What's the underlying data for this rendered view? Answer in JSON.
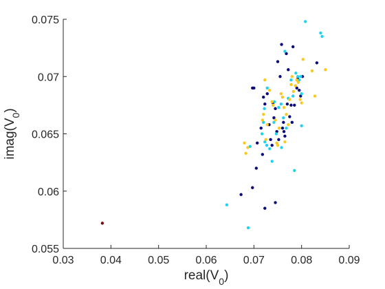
{
  "chart_data": {
    "type": "scatter",
    "title": "",
    "xlabel": {
      "main": "real(V",
      "sub": "0",
      "close": ")"
    },
    "ylabel": {
      "main": "imag(V",
      "sub": "0",
      "close": ")"
    },
    "xlim": [
      0.03,
      0.09
    ],
    "ylim": [
      0.055,
      0.075
    ],
    "xticks": [
      0.03,
      0.04,
      0.05,
      0.06,
      0.07,
      0.08,
      0.09
    ],
    "xtick_labels": [
      "0.03",
      "0.04",
      "0.05",
      "0.06",
      "0.07",
      "0.08",
      "0.09"
    ],
    "yticks": [
      0.055,
      0.06,
      0.065,
      0.07,
      0.075
    ],
    "ytick_labels": [
      "0.055",
      "0.06",
      "0.065",
      "0.07",
      "0.075"
    ],
    "grid": false,
    "series": [
      {
        "color": "#0a0a78",
        "points": [
          [
            0.0697,
            0.069
          ],
          [
            0.07,
            0.069
          ],
          [
            0.0707,
            0.0642
          ],
          [
            0.0715,
            0.0655
          ],
          [
            0.072,
            0.0682
          ],
          [
            0.0723,
            0.0676
          ],
          [
            0.0728,
            0.0685
          ],
          [
            0.0732,
            0.0658
          ],
          [
            0.0735,
            0.0645
          ],
          [
            0.0738,
            0.064
          ],
          [
            0.074,
            0.0677
          ],
          [
            0.0742,
            0.0664
          ],
          [
            0.0745,
            0.0672
          ],
          [
            0.0748,
            0.0652
          ],
          [
            0.075,
            0.0713
          ],
          [
            0.0752,
            0.0645
          ],
          [
            0.0755,
            0.07
          ],
          [
            0.0758,
            0.0728
          ],
          [
            0.076,
            0.0655
          ],
          [
            0.0762,
            0.066
          ],
          [
            0.0763,
            0.0652
          ],
          [
            0.0765,
            0.0648
          ],
          [
            0.0768,
            0.072
          ],
          [
            0.077,
            0.0676
          ],
          [
            0.0772,
            0.0706
          ],
          [
            0.0775,
            0.0665
          ],
          [
            0.0778,
            0.0675
          ],
          [
            0.078,
            0.066
          ],
          [
            0.0782,
            0.0726
          ],
          [
            0.0785,
            0.0675
          ],
          [
            0.079,
            0.069
          ],
          [
            0.0792,
            0.0698
          ],
          [
            0.0795,
            0.0688
          ],
          [
            0.0798,
            0.0683
          ],
          [
            0.0802,
            0.07
          ],
          [
            0.0832,
            0.0712
          ],
          [
            0.0705,
            0.062
          ],
          [
            0.0673,
            0.0597
          ],
          [
            0.0697,
            0.0603
          ],
          [
            0.0723,
            0.0585
          ],
          [
            0.0745,
            0.059
          ],
          [
            0.0718,
            0.0632
          ]
        ]
      },
      {
        "color": "#1ed2f0",
        "points": [
          [
            0.0643,
            0.0588
          ],
          [
            0.0688,
            0.0568
          ],
          [
            0.0692,
            0.0639
          ],
          [
            0.0717,
            0.065
          ],
          [
            0.072,
            0.066
          ],
          [
            0.0722,
            0.0672
          ],
          [
            0.0723,
            0.0643
          ],
          [
            0.0727,
            0.064
          ],
          [
            0.0728,
            0.069
          ],
          [
            0.0733,
            0.0637
          ],
          [
            0.0738,
            0.0626
          ],
          [
            0.0742,
            0.066
          ],
          [
            0.0743,
            0.0678
          ],
          [
            0.0747,
            0.065
          ],
          [
            0.0752,
            0.0673
          ],
          [
            0.0757,
            0.0676
          ],
          [
            0.0758,
            0.0638
          ],
          [
            0.0762,
            0.0664
          ],
          [
            0.0765,
            0.0722
          ],
          [
            0.0768,
            0.0655
          ],
          [
            0.0772,
            0.0681
          ],
          [
            0.0778,
            0.0697
          ],
          [
            0.0782,
            0.0683
          ],
          [
            0.0785,
            0.0618
          ],
          [
            0.0788,
            0.0703
          ],
          [
            0.0792,
            0.07
          ],
          [
            0.0795,
            0.0697
          ],
          [
            0.0798,
            0.07
          ],
          [
            0.08,
            0.0657
          ],
          [
            0.0808,
            0.0748
          ],
          [
            0.084,
            0.0738
          ],
          [
            0.0843,
            0.0735
          ],
          [
            0.08,
            0.0685
          ]
        ]
      },
      {
        "color": "#fac81e",
        "points": [
          [
            0.068,
            0.0642
          ],
          [
            0.0683,
            0.0633
          ],
          [
            0.0687,
            0.0638
          ],
          [
            0.0718,
            0.0662
          ],
          [
            0.072,
            0.0667
          ],
          [
            0.0723,
            0.0697
          ],
          [
            0.0725,
            0.0645
          ],
          [
            0.0728,
            0.0658
          ],
          [
            0.0733,
            0.0688
          ],
          [
            0.0738,
            0.0678
          ],
          [
            0.074,
            0.0675
          ],
          [
            0.0745,
            0.0662
          ],
          [
            0.0748,
            0.0642
          ],
          [
            0.075,
            0.064
          ],
          [
            0.0753,
            0.0655
          ],
          [
            0.0757,
            0.0685
          ],
          [
            0.076,
            0.0682
          ],
          [
            0.0763,
            0.0673
          ],
          [
            0.0765,
            0.0643
          ],
          [
            0.0768,
            0.0667
          ],
          [
            0.0772,
            0.0658
          ],
          [
            0.0775,
            0.068
          ],
          [
            0.0778,
            0.0693
          ],
          [
            0.078,
            0.07
          ],
          [
            0.0783,
            0.0687
          ],
          [
            0.0787,
            0.0692
          ],
          [
            0.079,
            0.0697
          ],
          [
            0.0793,
            0.0695
          ],
          [
            0.0797,
            0.068
          ],
          [
            0.08,
            0.0677
          ],
          [
            0.0803,
            0.0715
          ],
          [
            0.0822,
            0.0705
          ],
          [
            0.0828,
            0.0683
          ],
          [
            0.085,
            0.0706
          ]
        ]
      },
      {
        "color": "#7a0a0a",
        "points": [
          [
            0.0382,
            0.0572
          ]
        ]
      }
    ]
  }
}
